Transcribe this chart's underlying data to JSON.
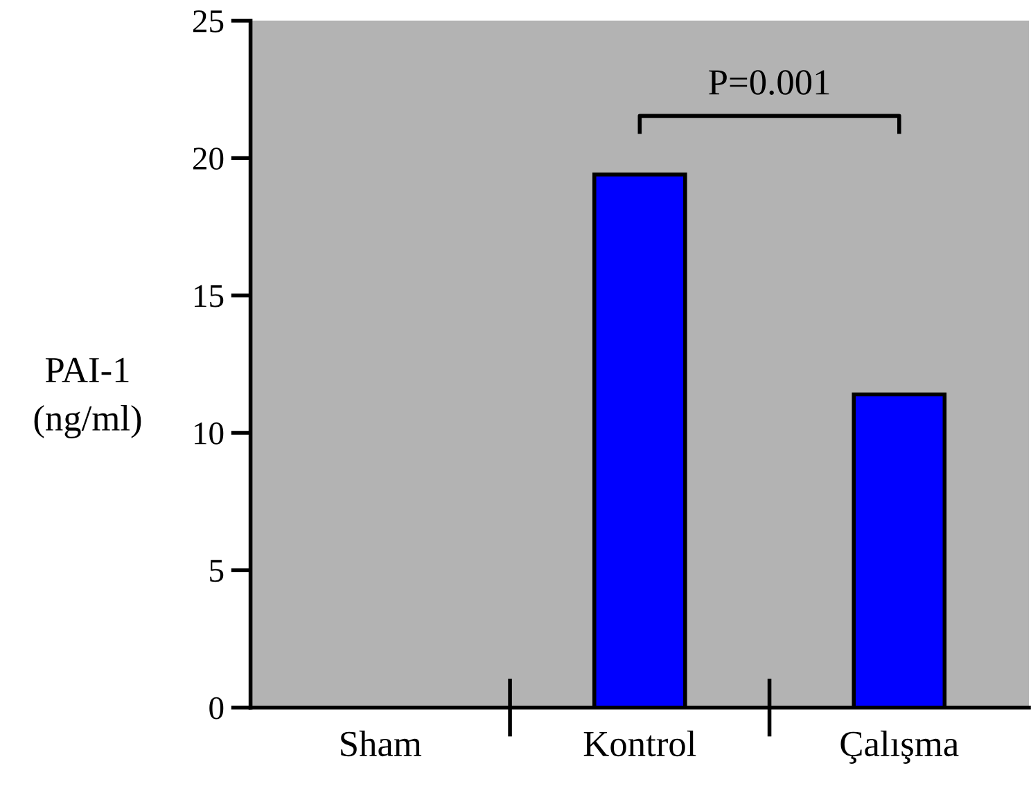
{
  "chart_data": {
    "type": "bar",
    "ylabel": "PAI-1\n(ng/ml)",
    "categories": [
      "Sham",
      "Kontrol",
      "Çalışma"
    ],
    "values": [
      0,
      19.4,
      11.4
    ],
    "color": "#0000ff",
    "ylim": [
      0,
      25
    ],
    "yticks": [
      0,
      5,
      10,
      15,
      20,
      25
    ],
    "grid": false,
    "annotations": [
      "P=0.001"
    ]
  }
}
